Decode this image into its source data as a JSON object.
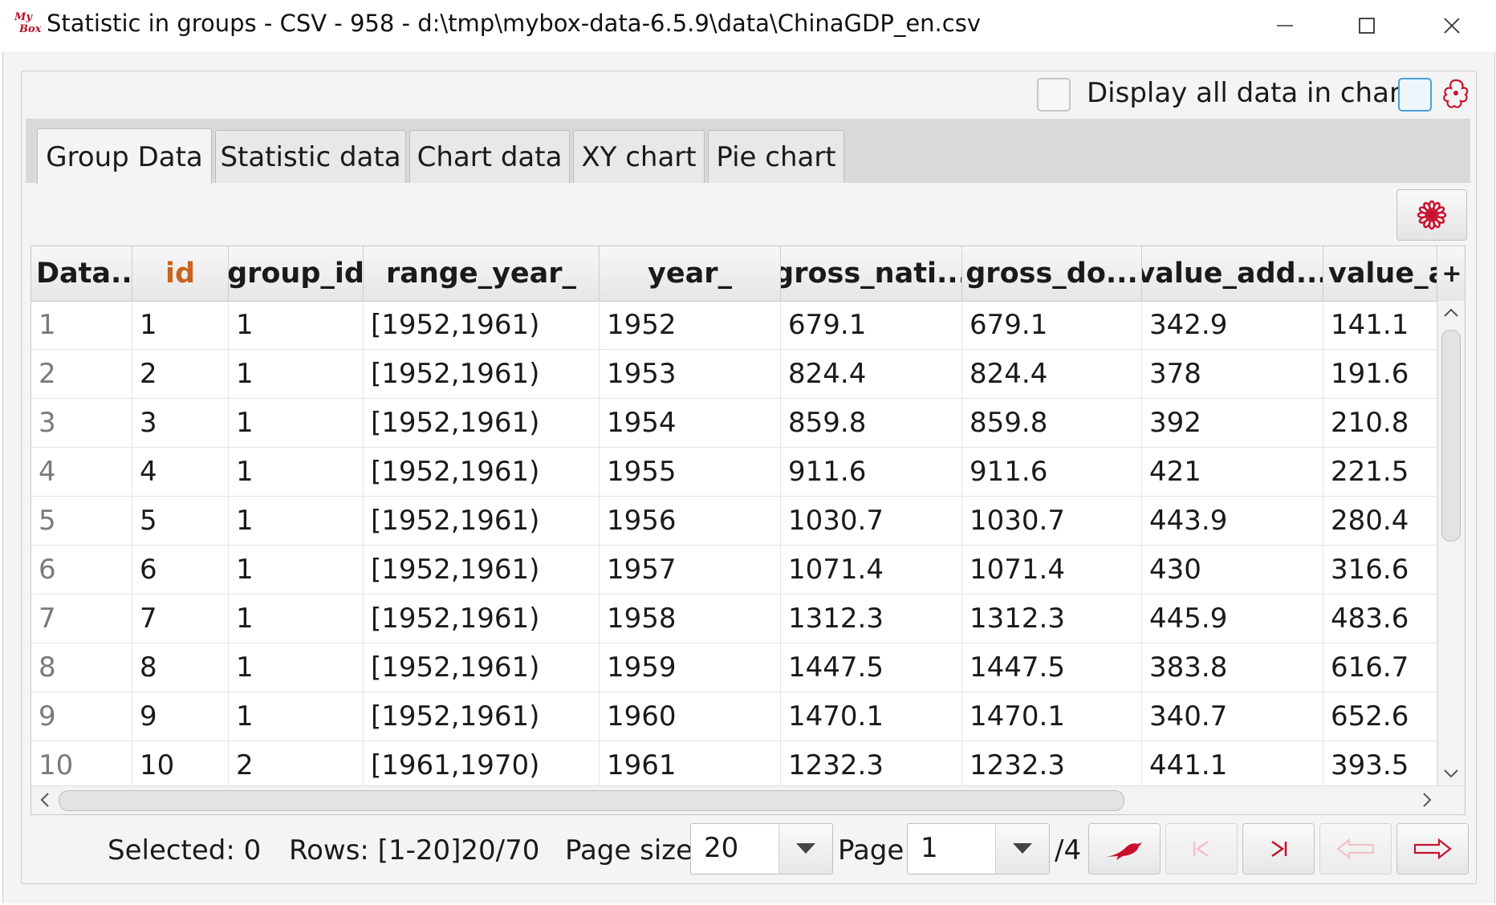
{
  "window": {
    "logo_text_top": "My",
    "logo_text_bottom": "Box",
    "title": "Statistic in groups - CSV - 958 - d:\\tmp\\mybox-data-6.5.9\\data\\ChinaGDP_en.csv"
  },
  "options": {
    "display_all_label": "Display all data in chart"
  },
  "tabs": [
    {
      "label": "Group Data",
      "active": true
    },
    {
      "label": "Statistic data",
      "active": false
    },
    {
      "label": "Chart data",
      "active": false
    },
    {
      "label": "XY chart",
      "active": false
    },
    {
      "label": "Pie chart",
      "active": false
    }
  ],
  "table": {
    "columns": [
      "Data...",
      "id",
      "group_id",
      "range_year_",
      "year_",
      "gross_nati...",
      "gross_do...",
      "value_add...",
      "value_a"
    ],
    "add_column_symbol": "+",
    "rows": [
      [
        "1",
        "1",
        "1",
        "[1952,1961)",
        "1952",
        "679.1",
        "679.1",
        "342.9",
        "141.1"
      ],
      [
        "2",
        "2",
        "1",
        "[1952,1961)",
        "1953",
        "824.4",
        "824.4",
        "378",
        "191.6"
      ],
      [
        "3",
        "3",
        "1",
        "[1952,1961)",
        "1954",
        "859.8",
        "859.8",
        "392",
        "210.8"
      ],
      [
        "4",
        "4",
        "1",
        "[1952,1961)",
        "1955",
        "911.6",
        "911.6",
        "421",
        "221.5"
      ],
      [
        "5",
        "5",
        "1",
        "[1952,1961)",
        "1956",
        "1030.7",
        "1030.7",
        "443.9",
        "280.4"
      ],
      [
        "6",
        "6",
        "1",
        "[1952,1961)",
        "1957",
        "1071.4",
        "1071.4",
        "430",
        "316.6"
      ],
      [
        "7",
        "7",
        "1",
        "[1952,1961)",
        "1958",
        "1312.3",
        "1312.3",
        "445.9",
        "483.6"
      ],
      [
        "8",
        "8",
        "1",
        "[1952,1961)",
        "1959",
        "1447.5",
        "1447.5",
        "383.8",
        "616.7"
      ],
      [
        "9",
        "9",
        "1",
        "[1952,1961)",
        "1960",
        "1470.1",
        "1470.1",
        "340.7",
        "652.6"
      ],
      [
        "10",
        "10",
        "2",
        "[1961,1970)",
        "1961",
        "1232.3",
        "1232.3",
        "441.1",
        "393.5"
      ]
    ]
  },
  "footer": {
    "selected": "Selected: 0",
    "rows": "Rows: [1-20]20/70",
    "page_size_label": "Page size",
    "page_size_value": "20",
    "page_label": "Page",
    "page_value": "1",
    "page_total": "/4"
  },
  "colors": {
    "accent_red": "#c8102e",
    "id_header": "#c8641e",
    "disabled_red": "#f0a0a8"
  }
}
